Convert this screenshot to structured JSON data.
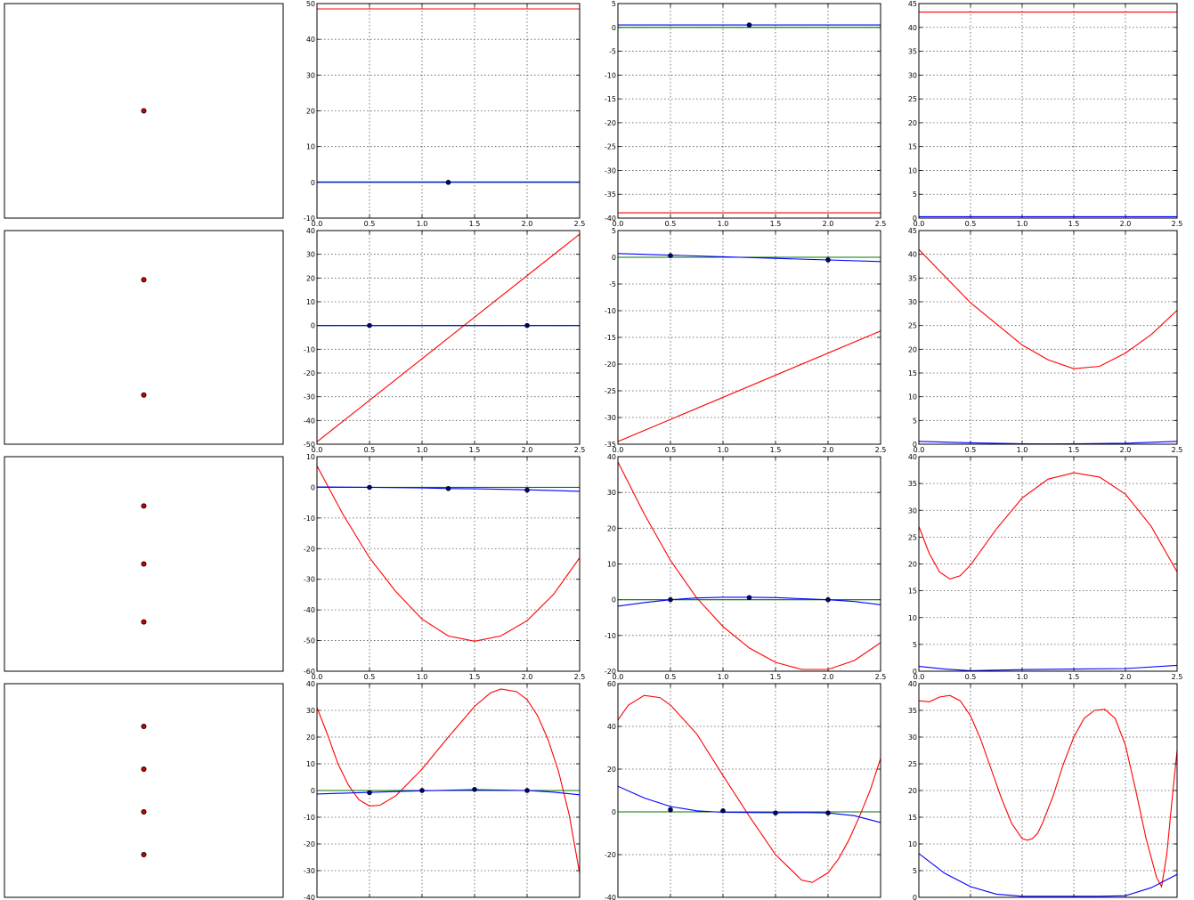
{
  "chart_data": [
    {
      "type": "scatter",
      "points": [
        [
          0.5,
          0.5
        ]
      ],
      "dot_color": "#cc0000"
    },
    {
      "type": "line",
      "xlim": [
        0,
        2.5
      ],
      "ylim": [
        -10,
        50
      ],
      "xticks": [
        "0.0",
        "0.5",
        "1.0",
        "1.5",
        "2.0",
        "2.5"
      ],
      "yticks": [
        "-10",
        "0",
        "10",
        "20",
        "30",
        "40",
        "50"
      ],
      "grid": true,
      "series": [
        {
          "color": "#ff0000",
          "x": [
            0,
            2.5
          ],
          "y": [
            48.5,
            48.5
          ]
        },
        {
          "color": "#007700",
          "x": [
            0,
            2.5
          ],
          "y": [
            0,
            0
          ]
        },
        {
          "color": "#0000ff",
          "x": [
            0,
            2.5
          ],
          "y": [
            0.1,
            0.1
          ]
        }
      ],
      "points": [
        [
          1.25,
          0
        ]
      ]
    },
    {
      "type": "line",
      "xlim": [
        0,
        2.5
      ],
      "ylim": [
        -40,
        5
      ],
      "xticks": [
        "0.0",
        "0.5",
        "1.0",
        "1.5",
        "2.0",
        "2.5"
      ],
      "yticks": [
        "-40",
        "-35",
        "-30",
        "-25",
        "-20",
        "-15",
        "-10",
        "-5",
        "0",
        "5"
      ],
      "grid": true,
      "series": [
        {
          "color": "#ff0000",
          "x": [
            0,
            2.5
          ],
          "y": [
            -38.9,
            -38.9
          ]
        },
        {
          "color": "#007700",
          "x": [
            0,
            2.5
          ],
          "y": [
            0,
            0
          ]
        },
        {
          "color": "#0000ff",
          "x": [
            0,
            2.5
          ],
          "y": [
            0.5,
            0.5
          ]
        }
      ],
      "points": [
        [
          1.25,
          0.5
        ]
      ]
    },
    {
      "type": "line",
      "xlim": [
        0,
        2.5
      ],
      "ylim": [
        0,
        45
      ],
      "xticks": [
        "0.0",
        "0.5",
        "1.0",
        "1.5",
        "2.0",
        "2.5"
      ],
      "yticks": [
        "0",
        "5",
        "10",
        "15",
        "20",
        "25",
        "30",
        "35",
        "40",
        "45"
      ],
      "grid": true,
      "series": [
        {
          "color": "#ff0000",
          "x": [
            0,
            2.5
          ],
          "y": [
            43.2,
            43.2
          ]
        },
        {
          "color": "#0000ff",
          "x": [
            0,
            2.5
          ],
          "y": [
            0.3,
            0.3
          ]
        }
      ],
      "points": []
    },
    {
      "type": "scatter",
      "points": [
        [
          0.5,
          0.77
        ],
        [
          0.5,
          0.23
        ]
      ],
      "dot_color": "#cc0000"
    },
    {
      "type": "line",
      "xlim": [
        0,
        2.5
      ],
      "ylim": [
        -50,
        40
      ],
      "xticks": [
        "0.0",
        "0.5",
        "1.0",
        "1.5",
        "2.0",
        "2.5"
      ],
      "yticks": [
        "-50",
        "-40",
        "-30",
        "-20",
        "-10",
        "0",
        "10",
        "20",
        "30",
        "40"
      ],
      "grid": true,
      "series": [
        {
          "color": "#ff0000",
          "x": [
            0,
            2.5
          ],
          "y": [
            -49,
            38.5
          ]
        },
        {
          "color": "#007700",
          "x": [
            0,
            2.5
          ],
          "y": [
            0,
            0
          ]
        },
        {
          "color": "#0000ff",
          "x": [
            0,
            2.5
          ],
          "y": [
            0,
            0
          ]
        }
      ],
      "points": [
        [
          0.5,
          0
        ],
        [
          2.0,
          0
        ]
      ]
    },
    {
      "type": "line",
      "xlim": [
        0,
        2.5
      ],
      "ylim": [
        -35,
        5
      ],
      "xticks": [
        "0.0",
        "0.5",
        "1.0",
        "1.5",
        "2.0",
        "2.5"
      ],
      "yticks": [
        "-35",
        "-30",
        "-25",
        "-20",
        "-15",
        "-10",
        "-5",
        "0",
        "5"
      ],
      "grid": true,
      "series": [
        {
          "color": "#ff0000",
          "x": [
            0,
            2.5
          ],
          "y": [
            -34.5,
            -13.8
          ]
        },
        {
          "color": "#007700",
          "x": [
            0,
            2.5
          ],
          "y": [
            0,
            0
          ]
        },
        {
          "color": "#0000ff",
          "x": [
            0,
            2.5
          ],
          "y": [
            0.7,
            -0.8
          ]
        }
      ],
      "points": [
        [
          0.5,
          0.3
        ],
        [
          2.0,
          -0.5
        ]
      ]
    },
    {
      "type": "line",
      "xlim": [
        0,
        2.5
      ],
      "ylim": [
        0,
        45
      ],
      "xticks": [
        "0.0",
        "0.5",
        "1.0",
        "1.5",
        "2.0",
        "2.5"
      ],
      "yticks": [
        "0",
        "5",
        "10",
        "15",
        "20",
        "25",
        "30",
        "35",
        "40",
        "45"
      ],
      "grid": true,
      "series": [
        {
          "color": "#ff0000",
          "x": [
            0,
            0.5,
            1,
            1.25,
            1.5,
            1.75,
            2,
            2.25,
            2.5
          ],
          "y": [
            41,
            29.8,
            20.9,
            17.8,
            15.9,
            16.4,
            19.2,
            23.1,
            28.2
          ]
        },
        {
          "color": "#0000ff",
          "x": [
            0,
            0.5,
            1,
            1.25,
            1.5,
            2,
            2.5
          ],
          "y": [
            0.6,
            0.3,
            0.1,
            0.05,
            0.1,
            0.2,
            0.6
          ]
        }
      ],
      "points": []
    },
    {
      "type": "scatter",
      "points": [
        [
          0.5,
          0.77
        ],
        [
          0.5,
          0.5
        ],
        [
          0.5,
          0.23
        ]
      ],
      "dot_color": "#cc0000"
    },
    {
      "type": "line",
      "xlim": [
        0,
        2.5
      ],
      "ylim": [
        -60,
        10
      ],
      "xticks": [
        "0.0",
        "0.5",
        "1.0",
        "1.5",
        "2.0",
        "2.5"
      ],
      "yticks": [
        "-60",
        "-50",
        "-40",
        "-30",
        "-20",
        "-10",
        "0",
        "10"
      ],
      "grid": true,
      "series": [
        {
          "color": "#ff0000",
          "x": [
            0,
            0.25,
            0.5,
            0.75,
            1,
            1.25,
            1.5,
            1.75,
            2,
            2.25,
            2.5
          ],
          "y": [
            7,
            -9,
            -23,
            -34,
            -43,
            -48.5,
            -50.2,
            -48.5,
            -43.5,
            -35,
            -23
          ]
        },
        {
          "color": "#007700",
          "x": [
            0,
            2.5
          ],
          "y": [
            0,
            0
          ]
        },
        {
          "color": "#0000ff",
          "x": [
            0,
            0.5,
            1,
            1.25,
            1.5,
            2,
            2.5
          ],
          "y": [
            0.1,
            0,
            -0.2,
            -0.4,
            -0.5,
            -0.8,
            -1.3
          ]
        }
      ],
      "points": [
        [
          0.5,
          0
        ],
        [
          1.25,
          -0.4
        ],
        [
          2.0,
          -0.9
        ]
      ]
    },
    {
      "type": "line",
      "xlim": [
        0,
        2.5
      ],
      "ylim": [
        -20,
        40
      ],
      "xticks": [
        "0.0",
        "0.5",
        "1.0",
        "1.5",
        "2.0",
        "2.5"
      ],
      "yticks": [
        "-20",
        "-10",
        "0",
        "10",
        "20",
        "30",
        "40"
      ],
      "grid": true,
      "series": [
        {
          "color": "#ff0000",
          "x": [
            0,
            0.25,
            0.5,
            0.75,
            1,
            1.25,
            1.5,
            1.75,
            2,
            2.25,
            2.5
          ],
          "y": [
            38.5,
            24,
            11,
            0.5,
            -7.5,
            -13.5,
            -17.5,
            -19.5,
            -19.5,
            -17,
            -12
          ]
        },
        {
          "color": "#007700",
          "x": [
            0,
            2.5
          ],
          "y": [
            0,
            0
          ]
        },
        {
          "color": "#0000ff",
          "x": [
            0,
            0.25,
            0.5,
            0.75,
            1,
            1.25,
            1.5,
            1.75,
            2,
            2.25,
            2.5
          ],
          "y": [
            -1.8,
            -0.8,
            0,
            0.5,
            0.7,
            0.7,
            0.6,
            0.3,
            0,
            -0.5,
            -1.4
          ]
        }
      ],
      "points": [
        [
          0.5,
          0
        ],
        [
          1.25,
          0.6
        ],
        [
          2.0,
          0
        ]
      ]
    },
    {
      "type": "line",
      "xlim": [
        0,
        2.5
      ],
      "ylim": [
        0,
        40
      ],
      "xticks": [
        "0.0",
        "0.5",
        "1.0",
        "1.5",
        "2.0",
        "2.5"
      ],
      "yticks": [
        "0",
        "5",
        "10",
        "15",
        "20",
        "25",
        "30",
        "35",
        "40"
      ],
      "grid": true,
      "series": [
        {
          "color": "#ff0000",
          "x": [
            0,
            0.1,
            0.2,
            0.3,
            0.4,
            0.5,
            0.75,
            1,
            1.25,
            1.5,
            1.75,
            2,
            2.25,
            2.5
          ],
          "y": [
            27,
            22,
            18.5,
            17.2,
            17.8,
            19.8,
            26.5,
            32.3,
            35.8,
            37,
            36.2,
            33,
            27,
            18.5
          ]
        },
        {
          "color": "#0000ff",
          "x": [
            0,
            0.25,
            0.5,
            0.75,
            1,
            1.5,
            2,
            2.5
          ],
          "y": [
            0.9,
            0.4,
            0.1,
            0.2,
            0.3,
            0.4,
            0.5,
            1.1
          ]
        }
      ],
      "points": []
    },
    {
      "type": "scatter",
      "points": [
        [
          0.5,
          0.8
        ],
        [
          0.5,
          0.6
        ],
        [
          0.5,
          0.4
        ],
        [
          0.5,
          0.2
        ]
      ],
      "dot_color": "#cc0000"
    },
    {
      "type": "line",
      "xlim": [
        0,
        2.5
      ],
      "ylim": [
        -40,
        40
      ],
      "xticks": [
        "0.0",
        "0.5",
        "1.0",
        "1.5",
        "2.0",
        "2.5"
      ],
      "yticks": [
        "-40",
        "-30",
        "-20",
        "-10",
        "0",
        "10",
        "20",
        "30",
        "40"
      ],
      "grid": true,
      "series": [
        {
          "color": "#ff0000",
          "x": [
            0,
            0.1,
            0.2,
            0.3,
            0.4,
            0.5,
            0.6,
            0.75,
            1,
            1.25,
            1.5,
            1.65,
            1.75,
            1.9,
            2,
            2.1,
            2.2,
            2.3,
            2.4,
            2.5
          ],
          "y": [
            31,
            21,
            10,
            2,
            -3.5,
            -5.8,
            -5.5,
            -2,
            8,
            20,
            31.5,
            36.5,
            38,
            37,
            34,
            28,
            19,
            7,
            -9,
            -31
          ]
        },
        {
          "color": "#007700",
          "x": [
            0,
            2.5
          ],
          "y": [
            0,
            0
          ]
        },
        {
          "color": "#0000ff",
          "x": [
            0,
            0.5,
            1,
            1.5,
            2,
            2.25,
            2.5
          ],
          "y": [
            -1.3,
            -0.7,
            -0.1,
            0.3,
            0,
            -0.6,
            -1.6
          ]
        }
      ],
      "points": [
        [
          0.5,
          -0.8
        ],
        [
          1.0,
          0
        ],
        [
          1.5,
          0.4
        ],
        [
          2.0,
          0
        ]
      ]
    },
    {
      "type": "line",
      "xlim": [
        0,
        2.5
      ],
      "ylim": [
        -40,
        60
      ],
      "xticks": [
        "0.0",
        "0.5",
        "1.0",
        "1.5",
        "2.0",
        "2.5"
      ],
      "yticks": [
        "-40",
        "-20",
        "0",
        "20",
        "40",
        "60"
      ],
      "grid": true,
      "series": [
        {
          "color": "#ff0000",
          "x": [
            0,
            0.1,
            0.25,
            0.4,
            0.5,
            0.75,
            1,
            1.25,
            1.5,
            1.75,
            1.85,
            2,
            2.1,
            2.2,
            2.3,
            2.4,
            2.5
          ],
          "y": [
            43,
            50,
            54.5,
            53.5,
            50,
            36.5,
            17,
            -2,
            -20,
            -32,
            -33,
            -28.5,
            -22,
            -13,
            -2,
            10,
            25
          ]
        },
        {
          "color": "#007700",
          "x": [
            0,
            2.5
          ],
          "y": [
            0,
            0
          ]
        },
        {
          "color": "#0000ff",
          "x": [
            0,
            0.25,
            0.5,
            0.75,
            1,
            1.25,
            1.5,
            1.75,
            2,
            2.25,
            2.5
          ],
          "y": [
            12,
            6.5,
            2.5,
            0.5,
            -0.2,
            -0.3,
            -0.4,
            -0.3,
            -0.5,
            -1.8,
            -5
          ]
        }
      ],
      "points": [
        [
          0.5,
          1
        ],
        [
          1.0,
          0.5
        ],
        [
          1.5,
          -0.5
        ],
        [
          2.0,
          -0.5
        ]
      ]
    },
    {
      "type": "line",
      "xlim": [
        0,
        2.5
      ],
      "ylim": [
        0,
        40
      ],
      "xticks": [
        "0.0",
        "0.5",
        "1.0",
        "1.5",
        "2.0",
        "2.5"
      ],
      "yticks": [
        "0",
        "5",
        "10",
        "15",
        "20",
        "25",
        "30",
        "35",
        "40"
      ],
      "grid": true,
      "series": [
        {
          "color": "#ff0000",
          "x": [
            0,
            0.1,
            0.2,
            0.3,
            0.4,
            0.5,
            0.6,
            0.7,
            0.8,
            0.9,
            1,
            1.05,
            1.1,
            1.15,
            1.2,
            1.3,
            1.4,
            1.5,
            1.6,
            1.7,
            1.8,
            1.9,
            2,
            2.1,
            2.2,
            2.3,
            2.35,
            2.4,
            2.45,
            2.5
          ],
          "y": [
            36.8,
            36.6,
            37.5,
            37.8,
            36.8,
            34,
            29.5,
            24,
            18.5,
            13.8,
            11,
            10.7,
            11,
            12,
            14,
            19,
            25,
            30,
            33.5,
            35,
            35.2,
            33.5,
            28.5,
            20,
            11,
            3.8,
            2,
            8,
            18,
            27.5
          ]
        },
        {
          "color": "#0000ff",
          "x": [
            0,
            0.25,
            0.5,
            0.75,
            1,
            1.25,
            1.5,
            1.75,
            2,
            2.25,
            2.5
          ],
          "y": [
            8.2,
            4.5,
            2,
            0.6,
            0.2,
            0.2,
            0.2,
            0.2,
            0.3,
            1.8,
            4.3
          ]
        }
      ],
      "points": []
    }
  ]
}
